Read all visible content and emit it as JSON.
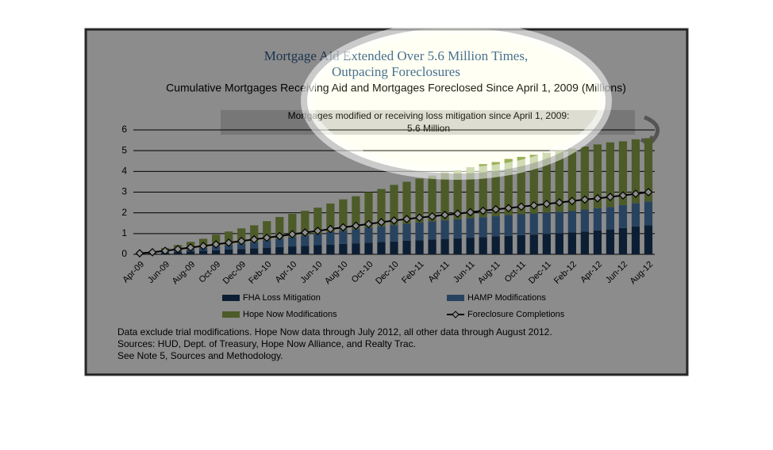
{
  "chart_data": {
    "type": "stacked_bar_line",
    "title": [
      "Mortgage Aid Extended Over 5.6 Million Times,",
      "Outpacing Foreclosures"
    ],
    "subtitle": "Cumulative Mortgages Receiving Aid and Mortgages Foreclosed Since April 1, 2009 (Millions)",
    "annotation": [
      "Mortgages modified or receiving loss mitigation since April 1, 2009:",
      "5.6 Million"
    ],
    "categories": [
      "Apr-09",
      null,
      "Jun-09",
      null,
      "Aug-09",
      null,
      "Oct-09",
      null,
      "Dec-09",
      null,
      "Feb-10",
      null,
      "Apr-10",
      null,
      "Jun-10",
      null,
      "Aug-10",
      null,
      "Oct-10",
      null,
      "Dec-10",
      null,
      "Feb-11",
      null,
      "Apr-11",
      null,
      "Jun-11",
      null,
      "Aug-11",
      null,
      "Oct-11",
      null,
      "Dec-11",
      null,
      "Feb-12",
      null,
      "Apr-12",
      null,
      "Jun-12",
      null,
      "Aug-12"
    ],
    "series": [
      {
        "name": "FHA Loss Mitigation",
        "color": "#17375e",
        "type": "bar",
        "values": [
          0.02,
          0.05,
          0.08,
          0.11,
          0.14,
          0.17,
          0.2,
          0.23,
          0.26,
          0.29,
          0.32,
          0.35,
          0.38,
          0.41,
          0.44,
          0.47,
          0.5,
          0.53,
          0.56,
          0.59,
          0.62,
          0.65,
          0.68,
          0.71,
          0.74,
          0.77,
          0.8,
          0.83,
          0.86,
          0.89,
          0.92,
          0.95,
          0.98,
          1.01,
          1.05,
          1.1,
          1.15,
          1.2,
          1.27,
          1.34,
          1.4
        ]
      },
      {
        "name": "HAMP Modifications",
        "color": "#4a7ab0",
        "type": "bar",
        "values": [
          0,
          0.01,
          0.03,
          0.06,
          0.1,
          0.14,
          0.18,
          0.22,
          0.26,
          0.3,
          0.35,
          0.4,
          0.45,
          0.5,
          0.55,
          0.6,
          0.64,
          0.68,
          0.72,
          0.76,
          0.79,
          0.82,
          0.85,
          0.88,
          0.9,
          0.92,
          0.94,
          0.96,
          0.98,
          1.0,
          1.01,
          1.02,
          1.03,
          1.04,
          1.05,
          1.06,
          1.07,
          1.08,
          1.1,
          1.12,
          1.15
        ]
      },
      {
        "name": "Hope Now Modifications",
        "color": "#8aa64a",
        "type": "bar",
        "values": [
          0.03,
          0.09,
          0.19,
          0.28,
          0.36,
          0.44,
          0.57,
          0.65,
          0.73,
          0.81,
          0.93,
          1.05,
          1.12,
          1.19,
          1.26,
          1.38,
          1.51,
          1.59,
          1.72,
          1.8,
          1.94,
          2.03,
          2.12,
          2.21,
          2.31,
          2.36,
          2.46,
          2.56,
          2.61,
          2.71,
          2.77,
          2.83,
          2.89,
          2.95,
          3.0,
          3.04,
          3.08,
          3.12,
          3.08,
          3.09,
          3.05
        ]
      },
      {
        "name": "Foreclosure Completions",
        "color": "#000000",
        "type": "line",
        "values": [
          0.05,
          0.1,
          0.17,
          0.25,
          0.33,
          0.4,
          0.48,
          0.56,
          0.64,
          0.72,
          0.8,
          0.88,
          0.97,
          1.05,
          1.13,
          1.22,
          1.3,
          1.38,
          1.46,
          1.55,
          1.63,
          1.7,
          1.77,
          1.83,
          1.9,
          1.96,
          2.03,
          2.1,
          2.17,
          2.23,
          2.3,
          2.36,
          2.43,
          2.5,
          2.57,
          2.64,
          2.7,
          2.77,
          2.84,
          2.92,
          3.0
        ]
      }
    ],
    "ylim": [
      0,
      6
    ],
    "yticks": [
      0,
      1,
      2,
      3,
      4,
      5,
      6
    ],
    "grid": true,
    "notes": [
      "Data exclude trial modifications. Hope Now data through July 2012, all other data through August 2012.",
      "Sources:  HUD, Dept. of Treasury, Hope Now Alliance, and Realty Trac.",
      "See Note 5, Sources and Methodology."
    ]
  }
}
